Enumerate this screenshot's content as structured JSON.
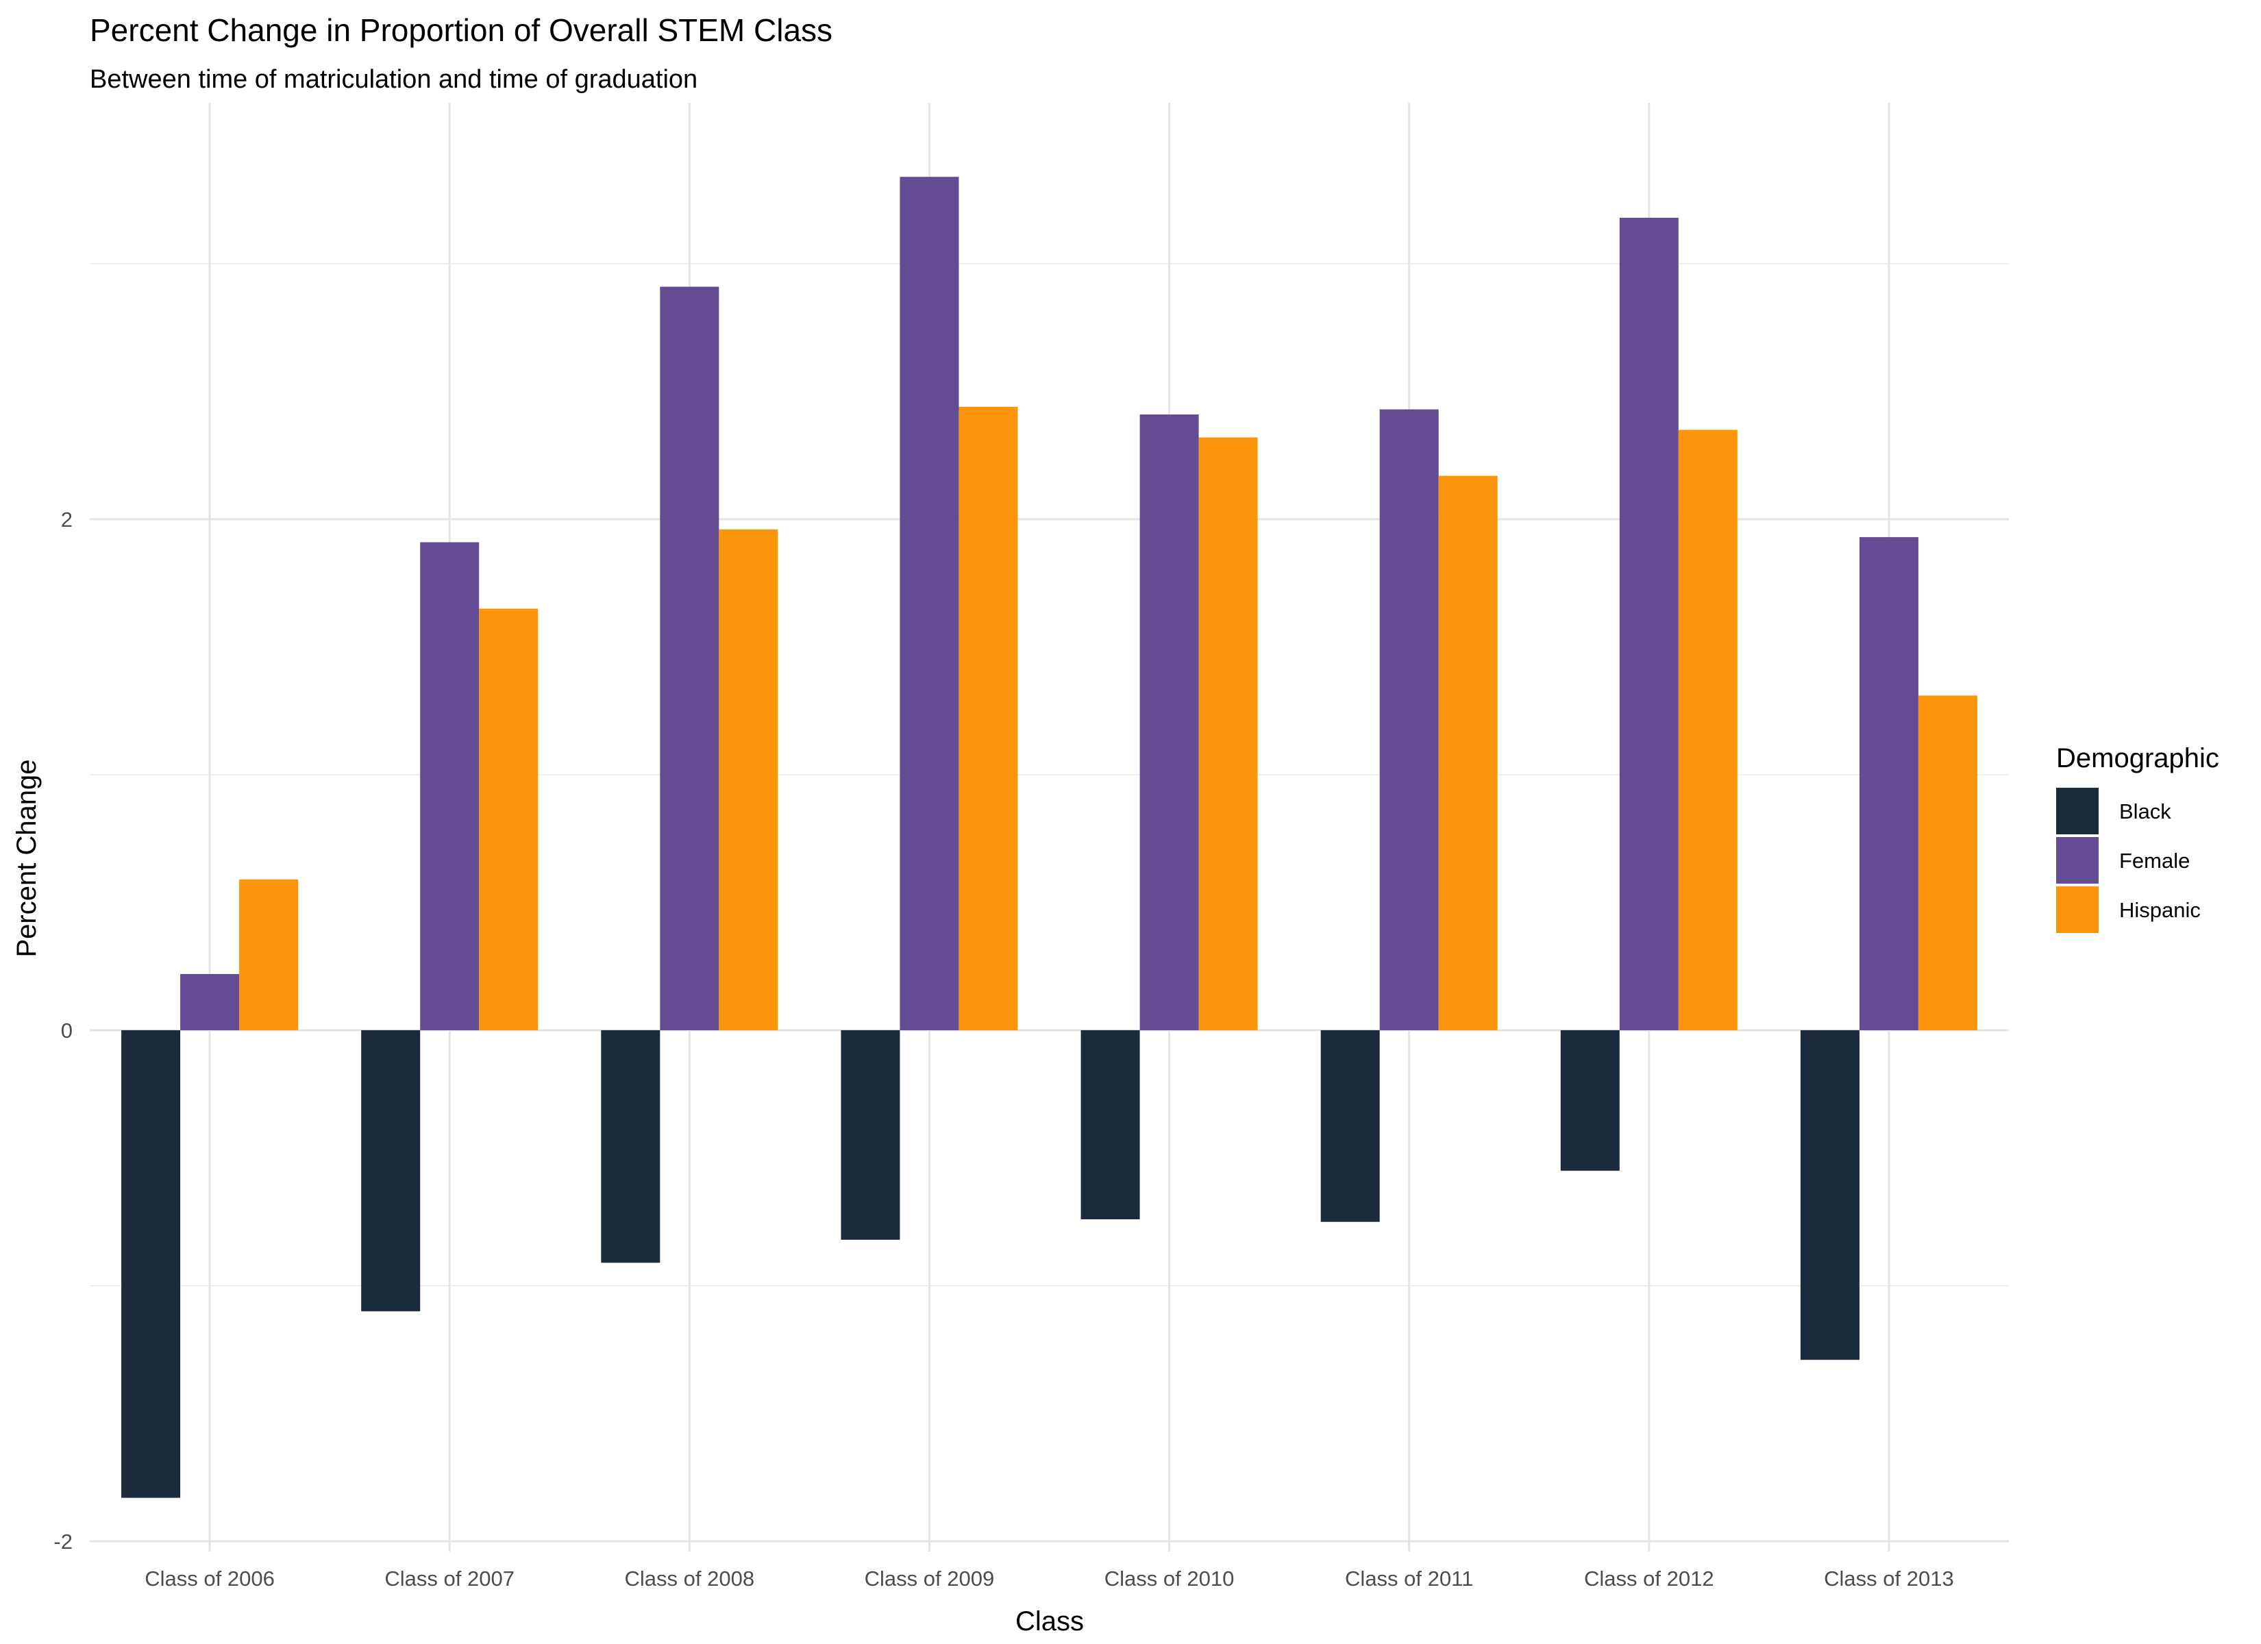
{
  "chart_data": {
    "type": "bar",
    "title": "Percent Change in Proportion of Overall STEM Class",
    "subtitle": "Between time of matriculation and time of graduation",
    "xlabel": "Class",
    "ylabel": "Percent Change",
    "categories": [
      "Class of 2006",
      "Class of 2007",
      "Class of 2008",
      "Class of 2009",
      "Class of 2010",
      "Class of 2011",
      "Class of 2012",
      "Class of 2013"
    ],
    "series": [
      {
        "name": "Black",
        "color": "#1c2a3e",
        "values": [
          -1.83,
          -1.1,
          -0.91,
          -0.82,
          -0.74,
          -0.75,
          -0.55,
          -1.29
        ]
      },
      {
        "name": "Female",
        "color": "#644c94",
        "values": [
          0.22,
          1.91,
          2.91,
          3.34,
          2.41,
          2.43,
          3.18,
          1.93
        ]
      },
      {
        "name": "Hispanic",
        "color": "#fc950c",
        "values": [
          0.59,
          1.65,
          1.96,
          2.44,
          2.32,
          2.17,
          2.35,
          1.31
        ]
      }
    ],
    "ylim": [
      -2.04,
      3.52
    ],
    "yticks": [
      -2,
      0,
      2
    ],
    "grid": true,
    "legend": {
      "title": "Demographic",
      "position": "right"
    }
  }
}
